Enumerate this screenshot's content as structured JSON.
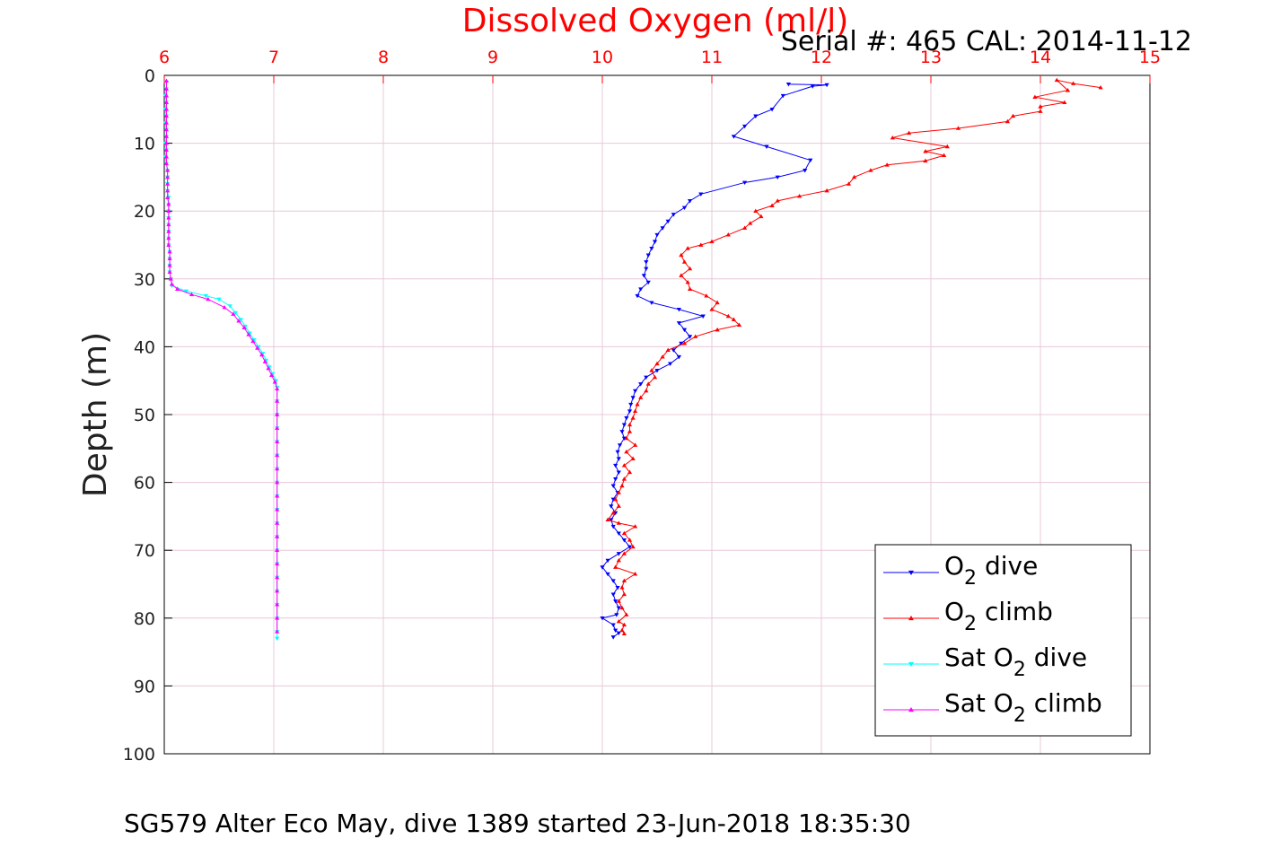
{
  "chart_data": {
    "type": "line",
    "title": "Dissolved Oxygen (ml/l)",
    "subtitle": "Serial #: 465  CAL: 2014-11-12",
    "ylabel": "Depth (m)",
    "xlabel": "SG579 Alter Eco May, dive 1389 started 23-Jun-2018 18:35:30",
    "xlim": [
      6,
      15
    ],
    "ylim": [
      0,
      100
    ],
    "y_reversed": true,
    "x_ticks": [
      "6",
      "7",
      "8",
      "9",
      "10",
      "11",
      "12",
      "13",
      "14",
      "15"
    ],
    "y_ticks": [
      "0",
      "10",
      "20",
      "30",
      "40",
      "50",
      "60",
      "70",
      "80",
      "90",
      "100"
    ],
    "grid": true,
    "legend_position": "bottom-right",
    "colors": {
      "title": "#ff0000",
      "x_ticks": "#ff0000",
      "grid": "#e8c8d8",
      "axis": "#000000"
    },
    "series": [
      {
        "name_main": "O",
        "name_sub": "2",
        "name_rest": " dive",
        "color": "#0000ff",
        "marker": "triangle-down",
        "points": [
          [
            11.7,
            1.3
          ],
          [
            12.05,
            1.4
          ],
          [
            11.92,
            1.6
          ],
          [
            11.65,
            3.0
          ],
          [
            11.55,
            5.0
          ],
          [
            11.4,
            6.0
          ],
          [
            11.3,
            7.5
          ],
          [
            11.2,
            9.0
          ],
          [
            11.5,
            10.5
          ],
          [
            11.9,
            12.5
          ],
          [
            11.85,
            14.0
          ],
          [
            11.6,
            15.0
          ],
          [
            11.3,
            15.8
          ],
          [
            10.9,
            17.5
          ],
          [
            10.8,
            18.5
          ],
          [
            10.75,
            19.5
          ],
          [
            10.65,
            20.5
          ],
          [
            10.6,
            21.5
          ],
          [
            10.55,
            22.5
          ],
          [
            10.5,
            23.5
          ],
          [
            10.48,
            24.5
          ],
          [
            10.45,
            25.5
          ],
          [
            10.42,
            26.5
          ],
          [
            10.4,
            27.5
          ],
          [
            10.4,
            28.5
          ],
          [
            10.38,
            29.5
          ],
          [
            10.42,
            30.5
          ],
          [
            10.35,
            31.5
          ],
          [
            10.32,
            32.5
          ],
          [
            10.45,
            33.5
          ],
          [
            10.7,
            34.5
          ],
          [
            10.92,
            35.5
          ],
          [
            10.7,
            36.5
          ],
          [
            10.75,
            37.5
          ],
          [
            10.8,
            38.5
          ],
          [
            10.72,
            39.5
          ],
          [
            10.65,
            40.5
          ],
          [
            10.7,
            41.5
          ],
          [
            10.62,
            42.5
          ],
          [
            10.5,
            43.5
          ],
          [
            10.4,
            44.5
          ],
          [
            10.35,
            45.5
          ],
          [
            10.3,
            46.5
          ],
          [
            10.28,
            47.5
          ],
          [
            10.26,
            48.5
          ],
          [
            10.25,
            49.5
          ],
          [
            10.22,
            50.5
          ],
          [
            10.2,
            51.5
          ],
          [
            10.18,
            52.5
          ],
          [
            10.2,
            53.5
          ],
          [
            10.16,
            54.5
          ],
          [
            10.14,
            55.5
          ],
          [
            10.15,
            56.5
          ],
          [
            10.12,
            57.5
          ],
          [
            10.15,
            58.5
          ],
          [
            10.12,
            59.5
          ],
          [
            10.1,
            60.5
          ],
          [
            10.14,
            61.5
          ],
          [
            10.1,
            62.5
          ],
          [
            10.08,
            63.5
          ],
          [
            10.12,
            64.5
          ],
          [
            10.08,
            65.5
          ],
          [
            10.1,
            66.5
          ],
          [
            10.15,
            67.5
          ],
          [
            10.2,
            68.5
          ],
          [
            10.25,
            69.5
          ],
          [
            10.15,
            70.5
          ],
          [
            10.05,
            71.5
          ],
          [
            10.0,
            72.5
          ],
          [
            10.05,
            73.5
          ],
          [
            10.1,
            74.5
          ],
          [
            10.14,
            75.5
          ],
          [
            10.1,
            76.5
          ],
          [
            10.12,
            77.5
          ],
          [
            10.15,
            78.5
          ],
          [
            10.13,
            79.5
          ],
          [
            10.0,
            80.0
          ],
          [
            10.1,
            81.0
          ],
          [
            10.12,
            81.8
          ],
          [
            10.15,
            82.2
          ],
          [
            10.1,
            82.8
          ]
        ]
      },
      {
        "name_main": "O",
        "name_sub": "2",
        "name_rest": " climb",
        "color": "#ff0000",
        "marker": "triangle-up",
        "points": [
          [
            14.55,
            1.8
          ],
          [
            14.3,
            1.2
          ],
          [
            14.15,
            0.7
          ],
          [
            14.25,
            2.2
          ],
          [
            13.95,
            3.2
          ],
          [
            14.22,
            4.0
          ],
          [
            14.0,
            4.6
          ],
          [
            14.0,
            5.3
          ],
          [
            13.75,
            6.0
          ],
          [
            13.7,
            6.8
          ],
          [
            13.25,
            7.8
          ],
          [
            12.8,
            8.5
          ],
          [
            12.65,
            9.2
          ],
          [
            13.15,
            10.5
          ],
          [
            12.95,
            11.2
          ],
          [
            13.12,
            11.8
          ],
          [
            12.95,
            12.6
          ],
          [
            12.6,
            13.2
          ],
          [
            12.45,
            14.0
          ],
          [
            12.3,
            15.0
          ],
          [
            12.25,
            16.0
          ],
          [
            12.05,
            17.0
          ],
          [
            11.8,
            17.8
          ],
          [
            11.6,
            18.5
          ],
          [
            11.55,
            19.2
          ],
          [
            11.4,
            20.0
          ],
          [
            11.45,
            20.8
          ],
          [
            11.35,
            21.8
          ],
          [
            11.3,
            22.5
          ],
          [
            11.15,
            23.5
          ],
          [
            11.0,
            24.5
          ],
          [
            10.9,
            25.0
          ],
          [
            10.78,
            25.5
          ],
          [
            10.72,
            26.5
          ],
          [
            10.75,
            27.5
          ],
          [
            10.8,
            28.5
          ],
          [
            10.72,
            29.5
          ],
          [
            10.78,
            30.5
          ],
          [
            10.8,
            31.5
          ],
          [
            10.95,
            32.5
          ],
          [
            11.05,
            33.5
          ],
          [
            11.0,
            34.5
          ],
          [
            11.15,
            35.5
          ],
          [
            11.2,
            36.0
          ],
          [
            11.25,
            36.8
          ],
          [
            11.05,
            37.5
          ],
          [
            10.85,
            38.5
          ],
          [
            10.75,
            39.5
          ],
          [
            10.6,
            40.5
          ],
          [
            10.55,
            41.5
          ],
          [
            10.5,
            42.5
          ],
          [
            10.45,
            43.5
          ],
          [
            10.48,
            44.5
          ],
          [
            10.42,
            45.5
          ],
          [
            10.4,
            46.5
          ],
          [
            10.35,
            47.5
          ],
          [
            10.32,
            48.5
          ],
          [
            10.3,
            49.5
          ],
          [
            10.28,
            50.5
          ],
          [
            10.25,
            51.5
          ],
          [
            10.25,
            52.5
          ],
          [
            10.22,
            53.5
          ],
          [
            10.3,
            54.5
          ],
          [
            10.22,
            55.5
          ],
          [
            10.28,
            56.5
          ],
          [
            10.2,
            57.5
          ],
          [
            10.25,
            58.5
          ],
          [
            10.2,
            59.5
          ],
          [
            10.18,
            60.5
          ],
          [
            10.15,
            61.5
          ],
          [
            10.12,
            62.5
          ],
          [
            10.15,
            63.5
          ],
          [
            10.1,
            64.5
          ],
          [
            10.05,
            65.5
          ],
          [
            10.15,
            66.0
          ],
          [
            10.3,
            66.5
          ],
          [
            10.2,
            67.5
          ],
          [
            10.25,
            68.5
          ],
          [
            10.28,
            69.5
          ],
          [
            10.2,
            70.5
          ],
          [
            10.15,
            71.5
          ],
          [
            10.12,
            72.5
          ],
          [
            10.3,
            73.5
          ],
          [
            10.2,
            74.5
          ],
          [
            10.18,
            75.5
          ],
          [
            10.2,
            76.5
          ],
          [
            10.15,
            77.5
          ],
          [
            10.18,
            78.5
          ],
          [
            10.22,
            79.5
          ],
          [
            10.15,
            80.5
          ],
          [
            10.2,
            81.0
          ],
          [
            10.18,
            81.8
          ],
          [
            10.2,
            82.3
          ]
        ]
      },
      {
        "name_main": "Sat O",
        "name_sub": "2",
        "name_rest": " dive",
        "color": "#00ffff",
        "marker": "triangle-down",
        "points": [
          [
            6.02,
            1.0
          ],
          [
            6.02,
            2.0
          ],
          [
            6.01,
            3.0
          ],
          [
            6.02,
            4.0
          ],
          [
            6.01,
            5.0
          ],
          [
            6.02,
            6.0
          ],
          [
            6.01,
            7.0
          ],
          [
            6.02,
            8.0
          ],
          [
            6.02,
            9.0
          ],
          [
            6.01,
            10.0
          ],
          [
            6.02,
            11.0
          ],
          [
            6.01,
            12.0
          ],
          [
            6.02,
            13.0
          ],
          [
            6.03,
            14.0
          ],
          [
            6.03,
            15.0
          ],
          [
            6.03,
            16.0
          ],
          [
            6.03,
            17.0
          ],
          [
            6.04,
            18.0
          ],
          [
            6.04,
            19.0
          ],
          [
            6.04,
            20.0
          ],
          [
            6.04,
            21.0
          ],
          [
            6.04,
            22.0
          ],
          [
            6.04,
            23.0
          ],
          [
            6.04,
            24.0
          ],
          [
            6.04,
            25.0
          ],
          [
            6.05,
            26.0
          ],
          [
            6.05,
            27.0
          ],
          [
            6.05,
            28.0
          ],
          [
            6.05,
            29.0
          ],
          [
            6.06,
            30.0
          ],
          [
            6.07,
            31.0
          ],
          [
            6.2,
            31.8
          ],
          [
            6.38,
            32.5
          ],
          [
            6.5,
            33.0
          ],
          [
            6.6,
            34.0
          ],
          [
            6.65,
            35.0
          ],
          [
            6.7,
            36.0
          ],
          [
            6.74,
            37.0
          ],
          [
            6.78,
            38.0
          ],
          [
            6.82,
            39.0
          ],
          [
            6.86,
            40.0
          ],
          [
            6.9,
            41.0
          ],
          [
            6.93,
            42.0
          ],
          [
            6.96,
            43.0
          ],
          [
            6.99,
            44.0
          ],
          [
            7.02,
            45.0
          ],
          [
            7.03,
            46.0
          ],
          [
            7.03,
            48.0
          ],
          [
            7.03,
            50.0
          ],
          [
            7.03,
            52.0
          ],
          [
            7.03,
            54.0
          ],
          [
            7.03,
            56.0
          ],
          [
            7.03,
            58.0
          ],
          [
            7.03,
            60.0
          ],
          [
            7.03,
            62.0
          ],
          [
            7.03,
            64.0
          ],
          [
            7.03,
            66.0
          ],
          [
            7.03,
            68.0
          ],
          [
            7.03,
            70.0
          ],
          [
            7.03,
            72.0
          ],
          [
            7.03,
            74.0
          ],
          [
            7.03,
            76.0
          ],
          [
            7.03,
            78.0
          ],
          [
            7.03,
            80.0
          ],
          [
            7.03,
            82.0
          ],
          [
            7.03,
            83.0
          ]
        ]
      },
      {
        "name_main": "Sat O",
        "name_sub": "2",
        "name_rest": " climb",
        "color": "#ff00ff",
        "marker": "triangle-up",
        "points": [
          [
            6.02,
            0.8
          ],
          [
            6.02,
            2.0
          ],
          [
            6.02,
            3.0
          ],
          [
            6.02,
            4.0
          ],
          [
            6.02,
            5.0
          ],
          [
            6.02,
            6.0
          ],
          [
            6.02,
            7.0
          ],
          [
            6.02,
            8.0
          ],
          [
            6.02,
            9.0
          ],
          [
            6.02,
            10.0
          ],
          [
            6.02,
            11.0
          ],
          [
            6.02,
            12.0
          ],
          [
            6.02,
            13.0
          ],
          [
            6.03,
            14.0
          ],
          [
            6.03,
            15.0
          ],
          [
            6.03,
            16.0
          ],
          [
            6.03,
            17.0
          ],
          [
            6.03,
            18.0
          ],
          [
            6.04,
            19.0
          ],
          [
            6.04,
            20.0
          ],
          [
            6.04,
            21.0
          ],
          [
            6.04,
            22.0
          ],
          [
            6.04,
            23.0
          ],
          [
            6.04,
            24.0
          ],
          [
            6.04,
            25.0
          ],
          [
            6.05,
            26.0
          ],
          [
            6.05,
            27.0
          ],
          [
            6.05,
            28.0
          ],
          [
            6.05,
            29.0
          ],
          [
            6.06,
            30.0
          ],
          [
            6.07,
            30.8
          ],
          [
            6.12,
            31.5
          ],
          [
            6.25,
            32.3
          ],
          [
            6.4,
            33.0
          ],
          [
            6.55,
            34.2
          ],
          [
            6.63,
            35.2
          ],
          [
            6.68,
            36.2
          ],
          [
            6.73,
            37.2
          ],
          [
            6.77,
            38.2
          ],
          [
            6.81,
            39.2
          ],
          [
            6.85,
            40.2
          ],
          [
            6.89,
            41.2
          ],
          [
            6.92,
            42.2
          ],
          [
            6.95,
            43.2
          ],
          [
            6.98,
            44.2
          ],
          [
            7.01,
            45.2
          ],
          [
            7.03,
            46.2
          ],
          [
            7.03,
            48.0
          ],
          [
            7.03,
            50.0
          ],
          [
            7.03,
            52.0
          ],
          [
            7.03,
            54.0
          ],
          [
            7.03,
            56.0
          ],
          [
            7.03,
            58.0
          ],
          [
            7.03,
            60.0
          ],
          [
            7.03,
            62.0
          ],
          [
            7.03,
            64.0
          ],
          [
            7.03,
            66.0
          ],
          [
            7.03,
            68.0
          ],
          [
            7.03,
            70.0
          ],
          [
            7.03,
            72.0
          ],
          [
            7.03,
            74.0
          ],
          [
            7.03,
            76.0
          ],
          [
            7.03,
            78.0
          ],
          [
            7.03,
            80.0
          ],
          [
            7.03,
            82.0
          ]
        ]
      }
    ]
  }
}
